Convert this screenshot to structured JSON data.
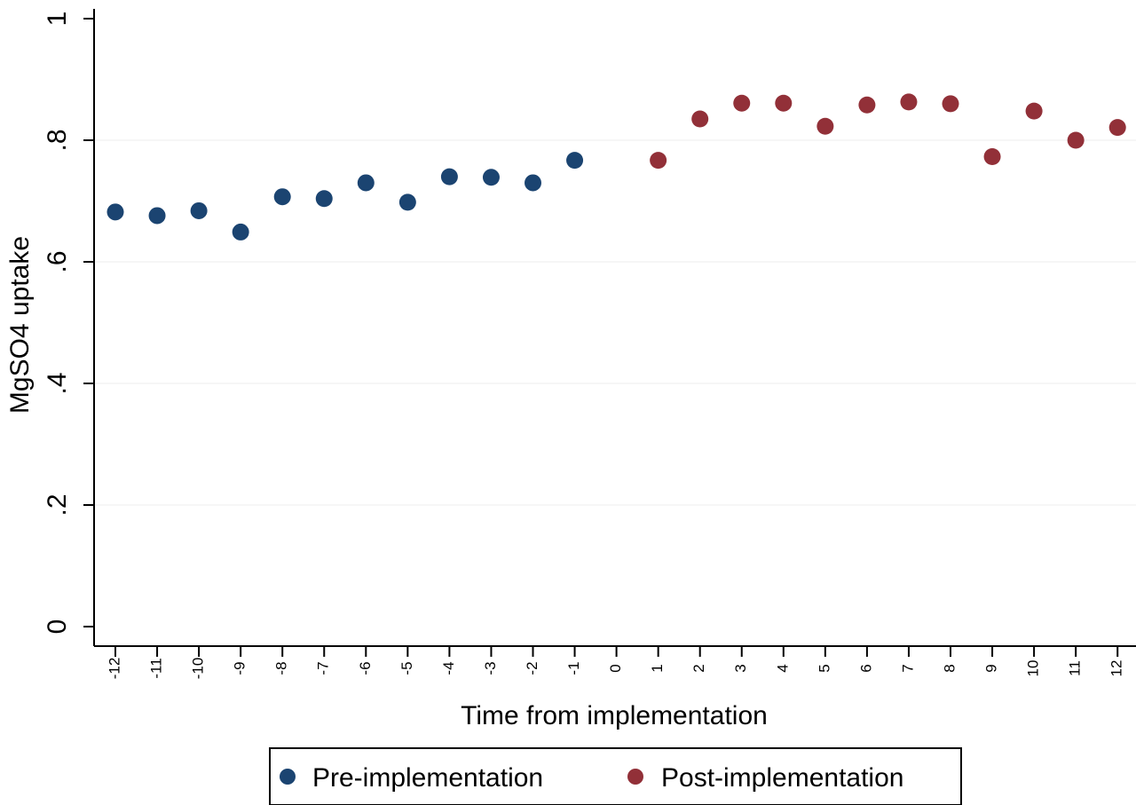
{
  "chart_data": {
    "type": "scatter",
    "xlabel": "Time from implementation",
    "ylabel": "MgSO4 uptake",
    "xlim": [
      -12,
      12
    ],
    "ylim": [
      0,
      1
    ],
    "x_ticks": [
      "-12",
      "-11",
      "-10",
      "-9",
      "-8",
      "-7",
      "-6",
      "-5",
      "-4",
      "-3",
      "-2",
      "-1",
      "0",
      "1",
      "2",
      "3",
      "4",
      "5",
      "6",
      "7",
      "8",
      "9",
      "10",
      "11",
      "12"
    ],
    "y_ticks": [
      {
        "value": 0,
        "label": "0"
      },
      {
        "value": 0.2,
        "label": ".2"
      },
      {
        "value": 0.4,
        "label": ".4"
      },
      {
        "value": 0.6,
        "label": ".6"
      },
      {
        "value": 0.8,
        "label": ".8"
      },
      {
        "value": 1,
        "label": "1"
      }
    ],
    "grid": "horizontal",
    "legend_position": "bottom",
    "series": [
      {
        "name": "Pre-implementation",
        "color": "#1b4471",
        "points": [
          {
            "x": -12,
            "y": 0.682
          },
          {
            "x": -11,
            "y": 0.676
          },
          {
            "x": -10,
            "y": 0.684
          },
          {
            "x": -9,
            "y": 0.649
          },
          {
            "x": -8,
            "y": 0.707
          },
          {
            "x": -7,
            "y": 0.704
          },
          {
            "x": -6,
            "y": 0.73
          },
          {
            "x": -5,
            "y": 0.698
          },
          {
            "x": -4,
            "y": 0.74
          },
          {
            "x": -3,
            "y": 0.739
          },
          {
            "x": -2,
            "y": 0.73
          },
          {
            "x": -1,
            "y": 0.767
          }
        ]
      },
      {
        "name": "Post-implementation",
        "color": "#923038",
        "points": [
          {
            "x": 1,
            "y": 0.767
          },
          {
            "x": 2,
            "y": 0.835
          },
          {
            "x": 3,
            "y": 0.861
          },
          {
            "x": 4,
            "y": 0.861
          },
          {
            "x": 5,
            "y": 0.823
          },
          {
            "x": 6,
            "y": 0.858
          },
          {
            "x": 7,
            "y": 0.863
          },
          {
            "x": 8,
            "y": 0.86
          },
          {
            "x": 9,
            "y": 0.773
          },
          {
            "x": 10,
            "y": 0.848
          },
          {
            "x": 11,
            "y": 0.8
          },
          {
            "x": 12,
            "y": 0.821
          }
        ]
      }
    ]
  }
}
